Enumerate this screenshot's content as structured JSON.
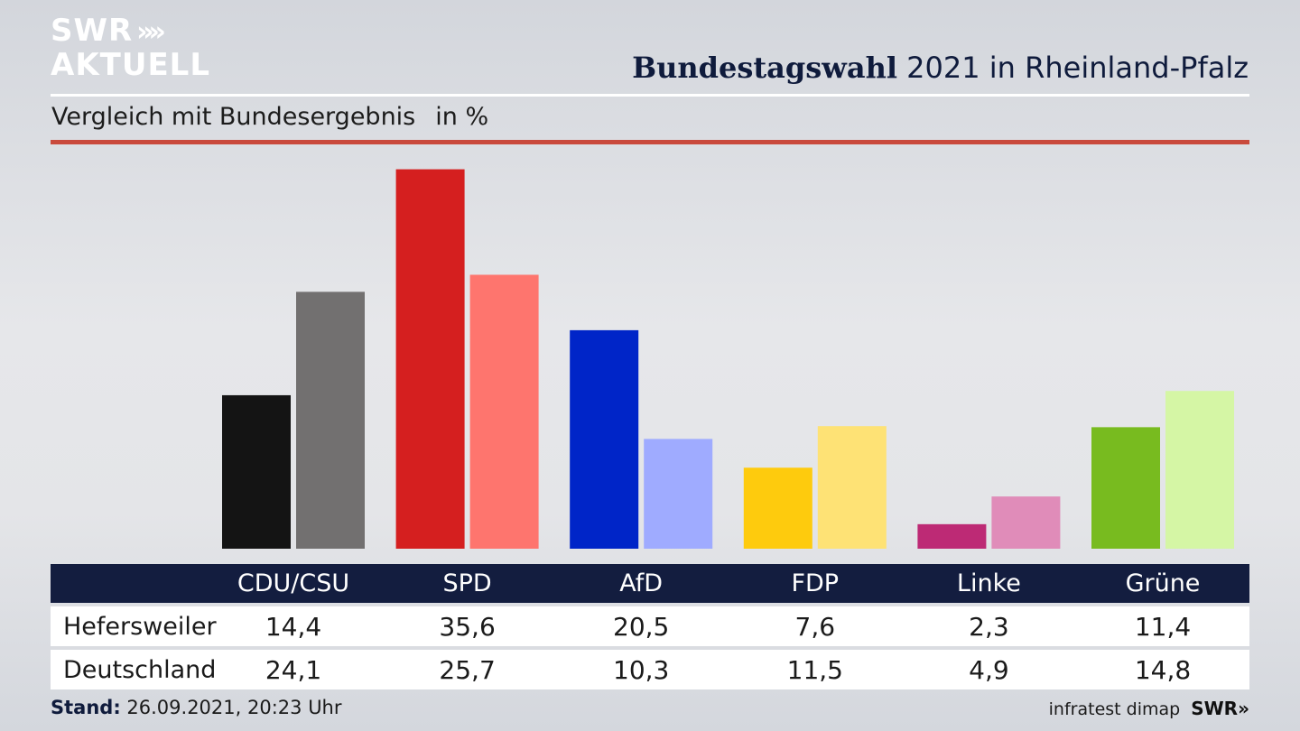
{
  "logo": {
    "line1": "SWR",
    "line2": "AKTUELL",
    "arrows": "»"
  },
  "header": {
    "title_bold": "Bundestagswahl",
    "title_rest": "2021 in Rheinland-Pfalz"
  },
  "subtitle": {
    "text": "Vergleich mit Bundesergebnis",
    "unit": "in %"
  },
  "chart_data": {
    "type": "bar",
    "categories": [
      "CDU/CSU",
      "SPD",
      "AfD",
      "FDP",
      "Linke",
      "Grüne"
    ],
    "series": [
      {
        "name": "Hefersweiler",
        "values": [
          14.4,
          35.6,
          20.5,
          7.6,
          2.3,
          11.4
        ],
        "colors": [
          "#141414",
          "#d51f1f",
          "#0025c8",
          "#fecb0d",
          "#bd2a75",
          "#78bb1f"
        ]
      },
      {
        "name": "Deutschland",
        "values": [
          24.1,
          25.7,
          10.3,
          11.5,
          4.9,
          14.8
        ],
        "colors": [
          "#727070",
          "#fe756e",
          "#9fabff",
          "#fee275",
          "#e08cb9",
          "#d5f6a5"
        ]
      }
    ],
    "grid": false,
    "legend": "table-below"
  },
  "table": {
    "headers": [
      "CDU/CSU",
      "SPD",
      "AfD",
      "FDP",
      "Linke",
      "Grüne"
    ],
    "rows": [
      {
        "label": "Hefersweiler",
        "values": [
          "14,4",
          "35,6",
          "20,5",
          "7,6",
          "2,3",
          "11,4"
        ]
      },
      {
        "label": "Deutschland",
        "values": [
          "24,1",
          "25,7",
          "10,3",
          "11,5",
          "4,9",
          "14,8"
        ]
      }
    ]
  },
  "footer": {
    "stand_label": "Stand:",
    "stand_value": "26.09.2021, 20:23 Uhr",
    "source": "infratest dimap",
    "brand": "SWR"
  }
}
